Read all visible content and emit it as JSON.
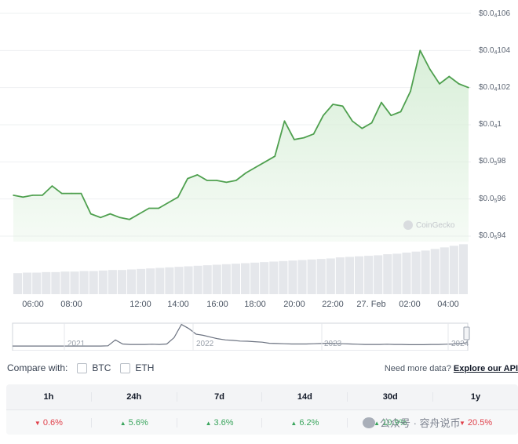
{
  "chart_data": {
    "type": "area",
    "x": [
      "05:30",
      "06:00",
      "06:30",
      "07:00",
      "07:30",
      "08:00",
      "08:30",
      "09:00",
      "09:30",
      "10:00",
      "10:30",
      "11:00",
      "11:30",
      "12:00",
      "12:30",
      "13:00",
      "13:30",
      "14:00",
      "14:30",
      "15:00",
      "15:30",
      "16:00",
      "16:30",
      "17:00",
      "17:30",
      "18:00",
      "18:30",
      "19:00",
      "19:30",
      "20:00",
      "20:30",
      "21:00",
      "21:30",
      "22:00",
      "22:30",
      "23:00",
      "23:30",
      "00:00",
      "00:30",
      "01:00",
      "01:30",
      "02:00",
      "02:30",
      "03:00",
      "03:30",
      "04:00",
      "04:30",
      "05:00"
    ],
    "values": [
      9.62e-07,
      9.61e-07,
      9.62e-07,
      9.62e-07,
      9.67e-07,
      9.63e-07,
      9.63e-07,
      9.63e-07,
      9.52e-07,
      9.5e-07,
      9.52e-07,
      9.5e-07,
      9.49e-07,
      9.52e-07,
      9.55e-07,
      9.55e-07,
      9.58e-07,
      9.61e-07,
      9.71e-07,
      9.73e-07,
      9.7e-07,
      9.7e-07,
      9.69e-07,
      9.7e-07,
      9.74e-07,
      9.77e-07,
      9.8e-07,
      9.83e-07,
      1.002e-06,
      9.92e-07,
      9.93e-07,
      9.95e-07,
      1.005e-06,
      1.011e-06,
      1.01e-06,
      1.002e-06,
      9.98e-07,
      1.001e-06,
      1.012e-06,
      1.005e-06,
      1.007e-06,
      1.018e-06,
      1.04e-06,
      1.03e-06,
      1.022e-06,
      1.026e-06,
      1.022e-06,
      1.02e-06
    ],
    "volume": [
      0.4,
      0.41,
      0.41,
      0.42,
      0.42,
      0.43,
      0.43,
      0.44,
      0.44,
      0.45,
      0.46,
      0.46,
      0.47,
      0.48,
      0.49,
      0.5,
      0.51,
      0.52,
      0.53,
      0.54,
      0.55,
      0.56,
      0.57,
      0.58,
      0.59,
      0.6,
      0.61,
      0.62,
      0.63,
      0.64,
      0.65,
      0.66,
      0.67,
      0.68,
      0.7,
      0.71,
      0.72,
      0.73,
      0.74,
      0.76,
      0.77,
      0.79,
      0.81,
      0.83,
      0.86,
      0.89,
      0.92,
      0.95
    ],
    "y_ticks": [
      {
        "prefix": "$0.0",
        "sub": "4",
        "digits": "106"
      },
      {
        "prefix": "$0.0",
        "sub": "4",
        "digits": "104"
      },
      {
        "prefix": "$0.0",
        "sub": "4",
        "digits": "102"
      },
      {
        "prefix": "$0.0",
        "sub": "4",
        "digits": "1"
      },
      {
        "prefix": "$0.0",
        "sub": "5",
        "digits": "98"
      },
      {
        "prefix": "$0.0",
        "sub": "5",
        "digits": "96"
      },
      {
        "prefix": "$0.0",
        "sub": "5",
        "digits": "94"
      }
    ],
    "ylim": [
      9.4e-07,
      1.06e-06
    ],
    "x_ticks": [
      "06:00",
      "08:00",
      "12:00",
      "14:00",
      "16:00",
      "18:00",
      "20:00",
      "22:00",
      "27. Feb",
      "02:00",
      "04:00"
    ],
    "navigator": {
      "labels": [
        "2021",
        "2022",
        "2023",
        "2024"
      ],
      "values": [
        0.03,
        0.03,
        0.03,
        0.03,
        0.03,
        0.03,
        0.03,
        0.03,
        0.03,
        0.03,
        0.03,
        0.03,
        0.03,
        0.04,
        0.3,
        0.12,
        0.1,
        0.1,
        0.1,
        0.11,
        0.1,
        0.12,
        0.4,
        0.98,
        0.8,
        0.55,
        0.5,
        0.42,
        0.35,
        0.3,
        0.28,
        0.25,
        0.24,
        0.22,
        0.2,
        0.15,
        0.14,
        0.13,
        0.12,
        0.12,
        0.12,
        0.13,
        0.14,
        0.15,
        0.14,
        0.13,
        0.12,
        0.11,
        0.1,
        0.1,
        0.1,
        0.11,
        0.1,
        0.1,
        0.09,
        0.09,
        0.09,
        0.1,
        0.1,
        0.11,
        0.12,
        0.14,
        0.18
      ]
    },
    "colors": {
      "line": "#4fa04f",
      "area": "#d9efd9",
      "volume": "#e5e7eb",
      "nav_line": "#6b7280"
    }
  },
  "watermark_text": "CoinGecko",
  "compare": {
    "label": "Compare with:",
    "options": [
      "BTC",
      "ETH"
    ]
  },
  "more_data": {
    "text": "Need more data?",
    "link": "Explore our API"
  },
  "performance": {
    "headers": [
      "1h",
      "24h",
      "7d",
      "14d",
      "30d",
      "1y"
    ],
    "values": [
      {
        "text": "0.6%",
        "direction": "down"
      },
      {
        "text": "5.6%",
        "direction": "up"
      },
      {
        "text": "3.6%",
        "direction": "up"
      },
      {
        "text": "6.2%",
        "direction": "up"
      },
      {
        "text": "10.9%",
        "direction": "up"
      },
      {
        "text": "20.5%",
        "direction": "down"
      }
    ]
  },
  "overlay_watermark": "公众号 · 容舟说币"
}
